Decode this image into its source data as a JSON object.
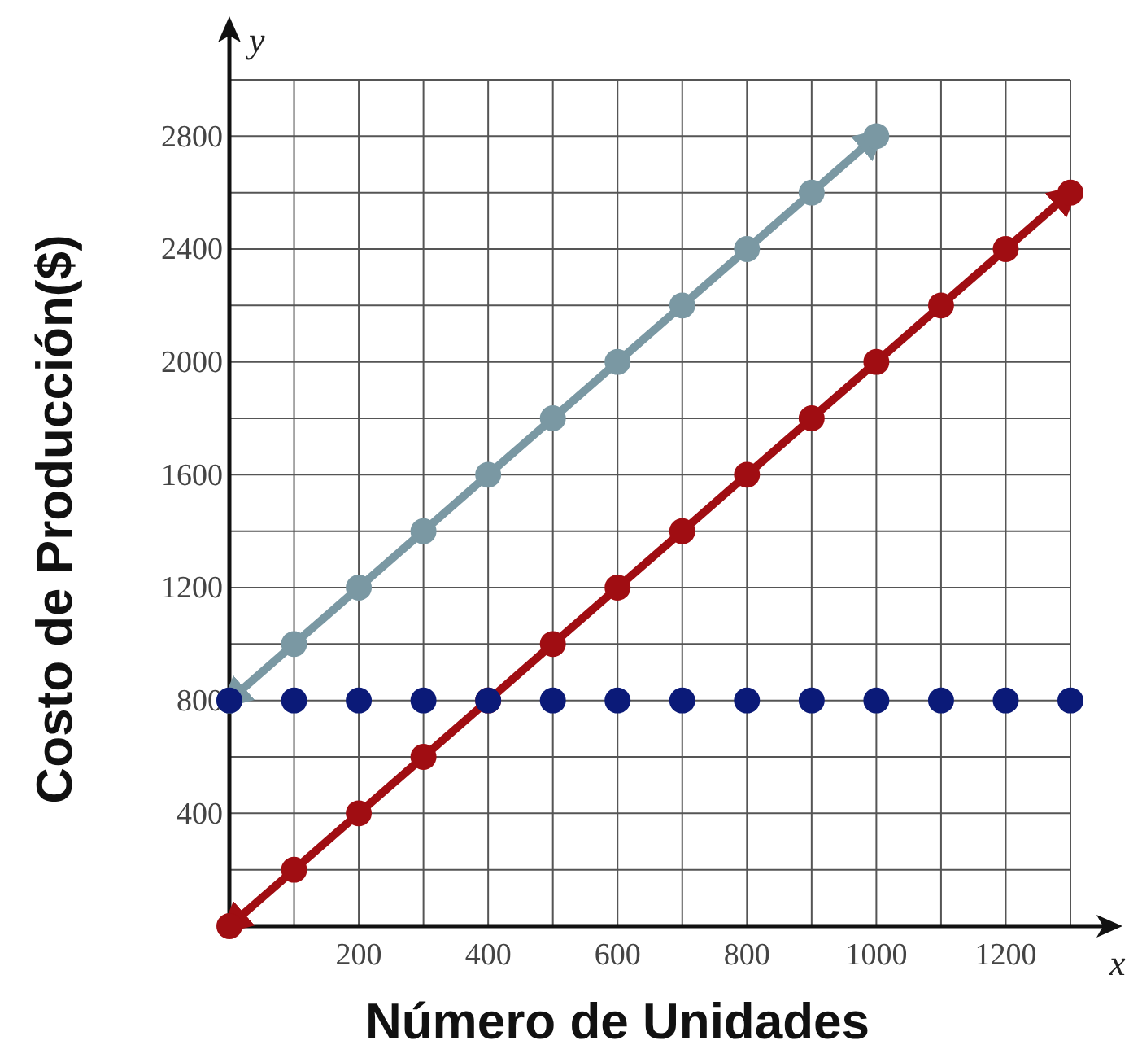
{
  "chart_data": {
    "type": "line",
    "xlabel": "Número de Unidades",
    "ylabel": "Costo de Producción($)",
    "annotations": [
      "y",
      "x"
    ],
    "xlim": [
      0,
      1300
    ],
    "ylim": [
      0,
      3000
    ],
    "xticks": [
      {
        "value": 0,
        "label": null
      },
      {
        "value": 100,
        "label": null
      },
      200,
      {
        "value": 300,
        "label": null
      },
      400,
      {
        "value": 500,
        "label": null
      },
      600,
      {
        "value": 700,
        "label": null
      },
      800,
      {
        "value": 900,
        "label": null
      },
      1000,
      {
        "value": 1100,
        "label": null
      },
      1200,
      {
        "value": 1300,
        "label": null
      }
    ],
    "yticks": [
      {
        "value": 0,
        "label": null
      },
      {
        "value": 200,
        "label": null
      },
      400,
      {
        "value": 600,
        "label": null
      },
      800,
      {
        "value": 1000,
        "label": null
      },
      1200,
      {
        "value": 1400,
        "label": null
      },
      1600,
      {
        "value": 1800,
        "label": null
      },
      2000,
      {
        "value": 2200,
        "label": null
      },
      2400,
      {
        "value": 2600,
        "label": null
      },
      2800,
      {
        "value": 3000,
        "label": null
      }
    ],
    "grid": true,
    "marker": "circle",
    "series": [
      {
        "color": "#7a98a3",
        "x": [
          0,
          100,
          200,
          300,
          400,
          500,
          600,
          700,
          800,
          900,
          1000
        ],
        "values": [
          800,
          1000,
          1200,
          1400,
          1600,
          1800,
          2000,
          2200,
          2400,
          2600,
          2800
        ]
      },
      {
        "color": "#a00d12",
        "x": [
          0,
          100,
          200,
          300,
          400,
          500,
          600,
          700,
          800,
          900,
          1000,
          1100,
          1200,
          1300
        ],
        "values": [
          0,
          200,
          400,
          600,
          800,
          1000,
          1200,
          1400,
          1600,
          1800,
          2000,
          2200,
          2400,
          2600
        ]
      },
      {
        "type": "scatter",
        "color": "#0b1a78",
        "x": [
          0,
          100,
          200,
          300,
          400,
          500,
          600,
          700,
          800,
          900,
          1000,
          1100,
          1200,
          1300
        ],
        "values": [
          800,
          800,
          800,
          800,
          800,
          800,
          800,
          800,
          800,
          800,
          800,
          800,
          800,
          800
        ]
      }
    ]
  }
}
